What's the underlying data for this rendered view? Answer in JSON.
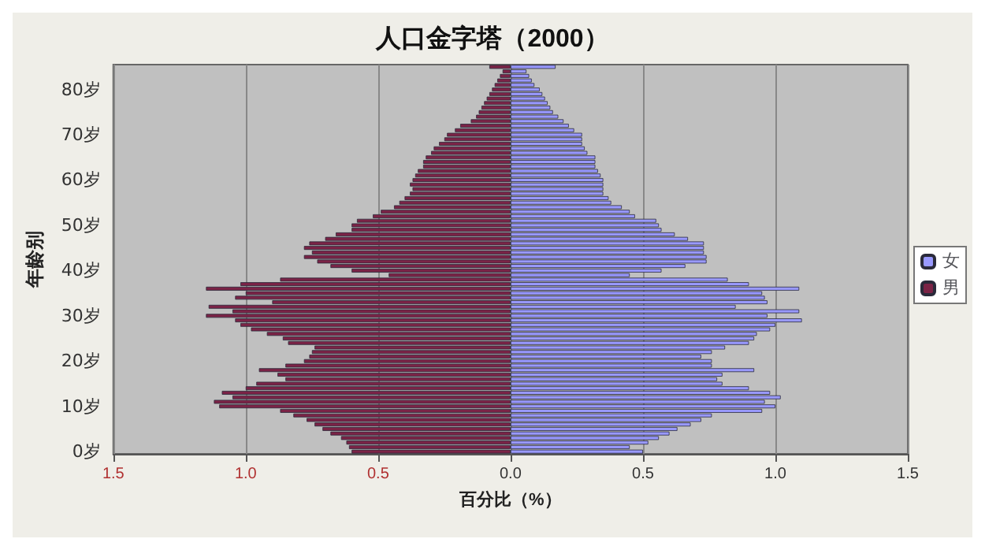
{
  "chart_data": {
    "type": "bar",
    "orientation": "horizontal",
    "stacked": true,
    "title": "人口金字塔（2000）",
    "xlabel": "百分比（%）",
    "ylabel": "年龄别",
    "categories": [
      null,
      null,
      null,
      null,
      null,
      "80岁",
      null,
      null,
      null,
      null,
      null,
      null,
      null,
      null,
      null,
      "70岁",
      null,
      null,
      null,
      null,
      null,
      null,
      null,
      null,
      null,
      "60岁",
      null,
      null,
      null,
      null,
      null,
      null,
      null,
      null,
      null,
      "50岁",
      null,
      null,
      null,
      null,
      null,
      null,
      null,
      null,
      null,
      "40岁",
      null,
      null,
      null,
      null,
      null,
      null,
      null,
      null,
      null,
      "30岁",
      null,
      null,
      null,
      null,
      null,
      null,
      null,
      null,
      null,
      "20岁",
      null,
      null,
      null,
      null,
      null,
      null,
      null,
      null,
      null,
      "10岁",
      null,
      null,
      null,
      null,
      null,
      null,
      null,
      null,
      null,
      "0岁"
    ],
    "series": [
      {
        "name": "女",
        "color": "#9999ff",
        "values": [
          0.17,
          0.06,
          0.07,
          0.08,
          0.09,
          0.11,
          0.12,
          0.13,
          0.14,
          0.15,
          0.16,
          0.18,
          0.2,
          0.22,
          0.24,
          0.27,
          0.27,
          0.27,
          0.28,
          0.29,
          0.32,
          0.32,
          0.32,
          0.33,
          0.34,
          0.35,
          0.35,
          0.35,
          0.35,
          0.37,
          0.38,
          0.42,
          0.45,
          0.47,
          0.55,
          0.56,
          0.57,
          0.62,
          0.67,
          0.73,
          0.73,
          0.73,
          0.74,
          0.74,
          0.66,
          0.57,
          0.45,
          0.82,
          0.9,
          1.09,
          0.95,
          0.96,
          0.97,
          0.85,
          1.09,
          0.97,
          1.1,
          1.0,
          0.98,
          0.93,
          0.92,
          0.9,
          0.81,
          0.76,
          0.72,
          0.76,
          0.76,
          0.92,
          0.8,
          0.78,
          0.8,
          0.9,
          0.98,
          1.02,
          0.96,
          1.0,
          0.95,
          0.76,
          0.72,
          0.68,
          0.63,
          0.6,
          0.56,
          0.52,
          0.45,
          0.5
        ]
      },
      {
        "name": "男",
        "color": "#7b2346",
        "values": [
          -0.08,
          -0.03,
          -0.04,
          -0.05,
          -0.06,
          -0.07,
          -0.08,
          -0.09,
          -0.1,
          -0.11,
          -0.12,
          -0.13,
          -0.15,
          -0.19,
          -0.21,
          -0.24,
          -0.25,
          -0.27,
          -0.29,
          -0.3,
          -0.32,
          -0.33,
          -0.33,
          -0.35,
          -0.36,
          -0.37,
          -0.38,
          -0.37,
          -0.38,
          -0.4,
          -0.42,
          -0.44,
          -0.49,
          -0.52,
          -0.58,
          -0.6,
          -0.6,
          -0.66,
          -0.7,
          -0.76,
          -0.78,
          -0.75,
          -0.78,
          -0.73,
          -0.68,
          -0.6,
          -0.46,
          -0.87,
          -1.02,
          -1.15,
          -1.0,
          -1.04,
          -0.9,
          -1.14,
          -1.05,
          -1.15,
          -1.04,
          -1.02,
          -0.98,
          -0.92,
          -0.86,
          -0.84,
          -0.74,
          -0.75,
          -0.76,
          -0.78,
          -0.85,
          -0.95,
          -0.88,
          -0.85,
          -0.96,
          -1.0,
          -1.09,
          -1.05,
          -1.12,
          -1.1,
          -0.87,
          -0.82,
          -0.77,
          -0.74,
          -0.71,
          -0.68,
          -0.64,
          -0.62,
          -0.61,
          -0.6
        ]
      }
    ],
    "xlim": [
      -1.5,
      1.5
    ],
    "xticks": [
      {
        "value": -1.5,
        "label": "1.5"
      },
      {
        "value": -1,
        "label": "1.0"
      },
      {
        "value": -0.5,
        "label": "0.5"
      },
      {
        "value": 0,
        "label": "0.0"
      },
      {
        "value": 0.5,
        "label": "0.5"
      },
      {
        "value": 1,
        "label": "1.0"
      },
      {
        "value": 1.5,
        "label": "1.5"
      }
    ],
    "grid": "x",
    "legend": "right"
  }
}
